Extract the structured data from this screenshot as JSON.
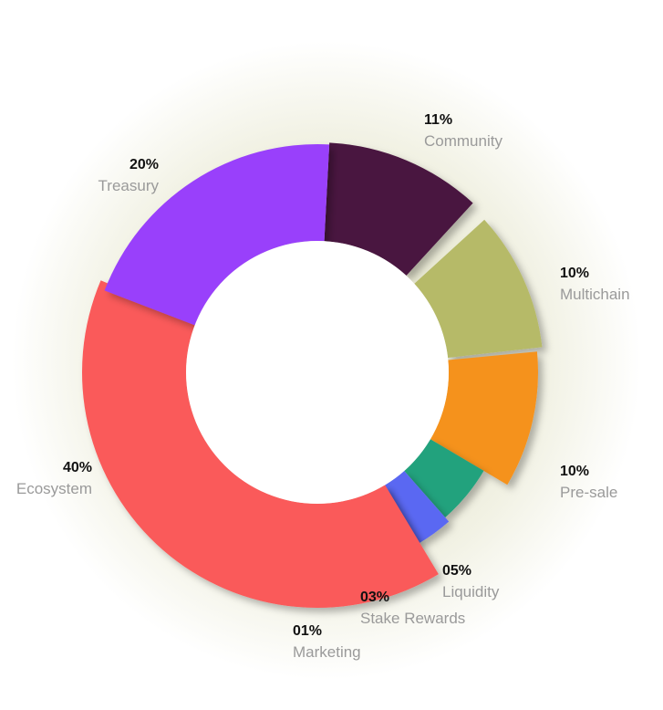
{
  "chart_data": {
    "type": "pie",
    "slices": [
      {
        "label": "Community",
        "pct_label": "11%",
        "value": 11,
        "color": "#4a1440"
      },
      {
        "label": "Multichain",
        "pct_label": "10%",
        "value": 10,
        "color": "#b6ba68"
      },
      {
        "label": "Pre-sale",
        "pct_label": "10%",
        "value": 10,
        "color": "#f5921e"
      },
      {
        "label": "Liquidity",
        "pct_label": "05%",
        "value": 5,
        "color": "#23a27d"
      },
      {
        "label": "Stake Rewards",
        "pct_label": "03%",
        "value": 3,
        "color": "#5a67f2"
      },
      {
        "label": "Marketing",
        "pct_label": "01%",
        "value": 1,
        "color": "#8d5a8c"
      },
      {
        "label": "Ecosystem",
        "pct_label": "40%",
        "value": 40,
        "color": "#fa5a5a"
      },
      {
        "label": "Treasury",
        "pct_label": "20%",
        "value": 20,
        "color": "#9941fb"
      }
    ]
  }
}
